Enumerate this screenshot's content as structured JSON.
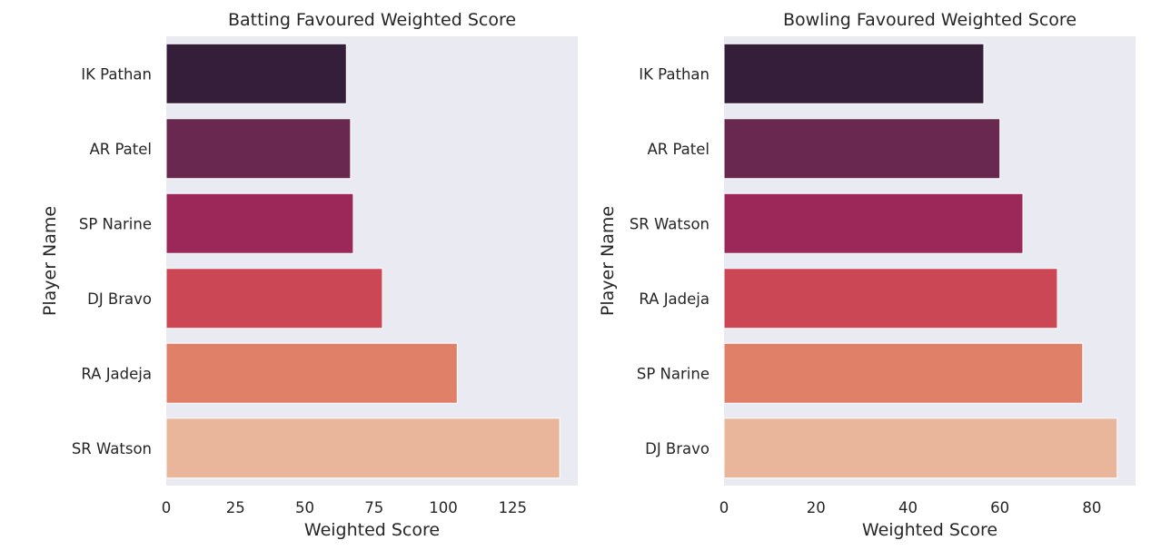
{
  "chart_data": [
    {
      "type": "bar",
      "orientation": "horizontal",
      "title": "Batting Favoured Weighted Score",
      "xlabel": "Weighted Score",
      "ylabel": "Player Name",
      "categories": [
        "IK Pathan",
        "AR Patel",
        "SP Narine",
        "DJ Bravo",
        "RA Jadeja",
        "SR Watson"
      ],
      "values": [
        65,
        66.5,
        67.5,
        78,
        105,
        142
      ],
      "xlim": [
        0,
        148.5
      ],
      "xticks": [
        0,
        25,
        50,
        75,
        100,
        125
      ],
      "colors": [
        "#351e39",
        "#69284f",
        "#9b2859",
        "#cc4756",
        "#e08068",
        "#eab69b"
      ],
      "grid": false,
      "background": "#eaeaf2"
    },
    {
      "type": "bar",
      "orientation": "horizontal",
      "title": "Bowling Favoured Weighted Score",
      "xlabel": "Weighted Score",
      "ylabel": "Player Name",
      "categories": [
        "IK Pathan",
        "AR Patel",
        "SR Watson",
        "RA Jadeja",
        "SP Narine",
        "DJ Bravo"
      ],
      "values": [
        56.5,
        60,
        65,
        72.5,
        78,
        85.5
      ],
      "xlim": [
        0,
        89.5
      ],
      "xticks": [
        0,
        20,
        40,
        60,
        80
      ],
      "colors": [
        "#351e39",
        "#69284f",
        "#9b2859",
        "#cc4756",
        "#e08068",
        "#eab69b"
      ],
      "grid": false,
      "background": "#eaeaf2"
    }
  ]
}
